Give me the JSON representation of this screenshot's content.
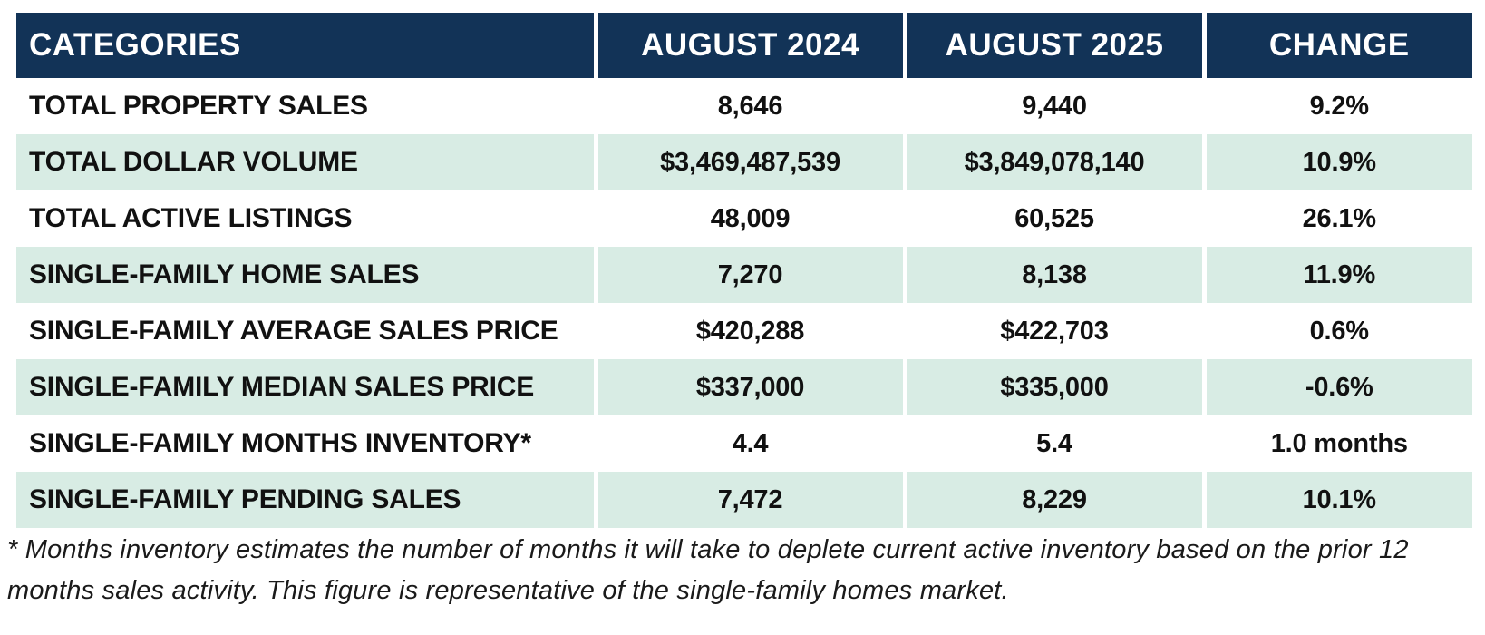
{
  "chart_data": {
    "type": "table",
    "headers": {
      "categories": "CATEGORIES",
      "aug_2024": "AUGUST 2024",
      "aug_2025": "AUGUST 2025",
      "change": "CHANGE"
    },
    "rows": [
      {
        "category": "TOTAL PROPERTY SALES",
        "aug_2024": "8,646",
        "aug_2025": "9,440",
        "change": "9.2%"
      },
      {
        "category": "TOTAL DOLLAR VOLUME",
        "aug_2024": "$3,469,487,539",
        "aug_2025": "$3,849,078,140",
        "change": "10.9%"
      },
      {
        "category": "TOTAL ACTIVE LISTINGS",
        "aug_2024": "48,009",
        "aug_2025": "60,525",
        "change": "26.1%"
      },
      {
        "category": "SINGLE-FAMILY HOME SALES",
        "aug_2024": "7,270",
        "aug_2025": "8,138",
        "change": "11.9%"
      },
      {
        "category": "SINGLE-FAMILY AVERAGE SALES PRICE",
        "aug_2024": "$420,288",
        "aug_2025": "$422,703",
        "change": "0.6%"
      },
      {
        "category": "SINGLE-FAMILY MEDIAN SALES PRICE",
        "aug_2024": "$337,000",
        "aug_2025": "$335,000",
        "change": "-0.6%"
      },
      {
        "category": "SINGLE-FAMILY MONTHS INVENTORY*",
        "aug_2024": "4.4",
        "aug_2025": "5.4",
        "change": "1.0 months"
      },
      {
        "category": "SINGLE-FAMILY PENDING SALES",
        "aug_2024": "7,472",
        "aug_2025": "8,229",
        "change": "10.1%"
      }
    ],
    "layout": {
      "alternating_rows": "white and mint starting with white",
      "value_columns_aligned": "center",
      "category_column_aligned": "left"
    }
  },
  "footnote": "* Months inventory estimates the number of months it will take to deplete current active inventory based on the prior 12 months sales activity. This figure is representative of the single-family homes market.",
  "colors": {
    "header_background": "#123357",
    "header_text": "#ffffff",
    "alt_row_background": "#d8ece4",
    "body_text": "#111111",
    "column_divider": "#ffffff"
  }
}
